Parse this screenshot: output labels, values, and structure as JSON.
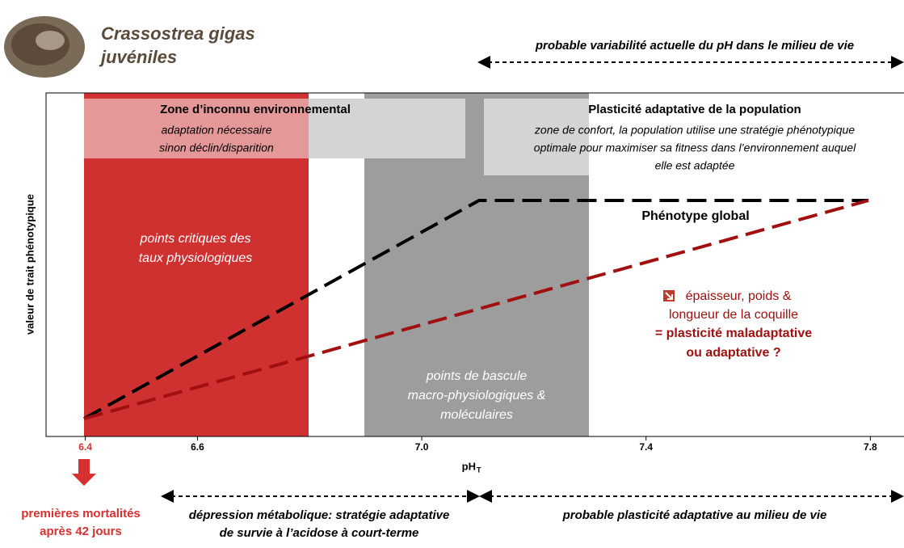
{
  "header": {
    "title": "Crassostrea gigas",
    "subtitle": "juvéniles",
    "top_note": "probable variabilité actuelle du pH dans le milieu de vie"
  },
  "axis": {
    "x_label": "pH",
    "x_label_sub": "T",
    "y_label": "valeur de trait phénotypique",
    "xlim": [
      6.33,
      7.86
    ],
    "xticks": [
      6.4,
      6.6,
      {
        "value": 7,
        "label": "7.0"
      },
      7.4,
      7.8
    ]
  },
  "zones": [
    {
      "title": "Zone d’inconnu environnemental",
      "lines": [
        "adaptation nécessaire",
        "sinon déclin/disparition"
      ],
      "inner": [
        "points critiques des",
        "taux physiologiques"
      ]
    },
    {
      "title": "Plasticité adaptative de la population",
      "lines": [
        "zone de confort, la population utilise une stratégie phénotypique",
        "optimale pour maximiser sa fitness dans l’environnement auquel",
        "elle est adaptée"
      ],
      "inner": [
        "points de bascule",
        "macro-physiologiques &",
        "moléculaires"
      ]
    }
  ],
  "curves": {
    "global": "Phénotype global",
    "shell": [
      "épaisseur, poids &",
      "longueur de la coquille",
      "= plasticité maladaptative",
      "ou adaptative ?"
    ]
  },
  "footer": {
    "mortality": [
      "premières mortalités",
      "après 42 jours"
    ],
    "depression": [
      "dépression métabolique: stratégie adaptative",
      "de survie à l’acidose à court-terme"
    ],
    "plasticity": "probable plasticité adaptative au milieu de vie"
  }
}
